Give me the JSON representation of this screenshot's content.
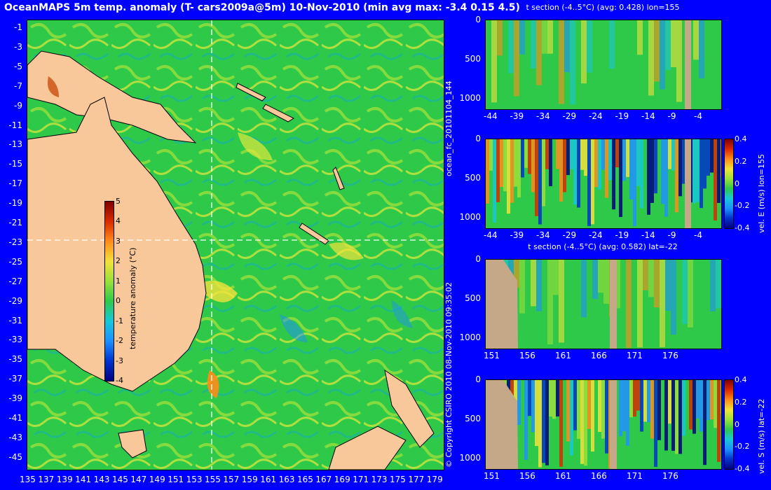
{
  "title": "OceanMAPS 5m temp. anomaly (T- cars2009a@5m) 10-Nov-2010 (min avg max: -3.4 0.15 4.5)",
  "side_text": {
    "run_id": "ocean_fc_20101104_144",
    "copyright": "© Copyright CSIRO 2010   08-Nov-2010 09:35:02"
  },
  "colors": {
    "background": "#0000ff",
    "land": "#f9c89a",
    "section_land": "#c4a888",
    "ocean": "#22c24a",
    "crosshair": "#ffffff"
  },
  "map": {
    "lon_ticks": [
      "135",
      "137",
      "139",
      "141",
      "143",
      "145",
      "147",
      "149",
      "151",
      "153",
      "155",
      "157",
      "159",
      "161",
      "163",
      "165",
      "167",
      "169",
      "171",
      "173",
      "175",
      "177",
      "179"
    ],
    "lat_ticks": [
      "-1",
      "-3",
      "-5",
      "-7",
      "-9",
      "-11",
      "-13",
      "-15",
      "-17",
      "-19",
      "-21",
      "-23",
      "-25",
      "-27",
      "-29",
      "-31",
      "-33",
      "-35",
      "-37",
      "-39",
      "-41",
      "-43",
      "-45"
    ],
    "lon_range": [
      135,
      180
    ],
    "lat_range": [
      -45,
      0
    ],
    "section_lon": 155,
    "section_lat": -22,
    "colorbar": {
      "label": "temperature anomaly (°C)",
      "ticks": [
        "5",
        "4",
        "3",
        "2",
        "1",
        "0",
        "-1",
        "-2",
        "-3",
        "-4"
      ]
    }
  },
  "sections": [
    {
      "title": "t section (-4..5°C) (avg: 0.428) lon=155",
      "x_ticks": [
        "-44",
        "-39",
        "-34",
        "-29",
        "-24",
        "-19",
        "-14",
        "-9",
        "-4"
      ],
      "y_ticks": [
        "0",
        "500",
        "1000"
      ],
      "colorbar": null
    },
    {
      "title": "",
      "x_ticks": [
        "-44",
        "-39",
        "-34",
        "-29",
        "-24",
        "-19",
        "-14",
        "-9",
        "-4"
      ],
      "y_ticks": [
        "0",
        "500",
        "1000"
      ],
      "colorbar": {
        "label": "vel. E (m/s) lon=155",
        "ticks": [
          "0.4",
          "0.2",
          "0",
          "-0.2",
          "-0.4"
        ]
      }
    },
    {
      "title": "t section (-4..5°C) (avg: 0.582) lat=-22",
      "x_ticks": [
        "151",
        "156",
        "161",
        "166",
        "171",
        "176"
      ],
      "y_ticks": [
        "0",
        "500",
        "1000"
      ],
      "colorbar": null
    },
    {
      "title": "",
      "x_ticks": [
        "151",
        "156",
        "161",
        "166",
        "171",
        "176"
      ],
      "y_ticks": [
        "0",
        "500",
        "1000"
      ],
      "colorbar": {
        "label": "vel. S (m/s) lat=-22",
        "ticks": [
          "0.4",
          "0.2",
          "0",
          "-0.2",
          "-0.4"
        ]
      }
    }
  ]
}
